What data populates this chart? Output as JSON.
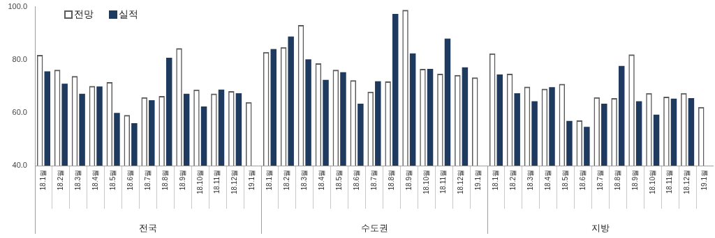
{
  "chart_data": [
    {
      "type": "bar",
      "xlabel": "전국",
      "legend": "top left",
      "categories": [
        "18.1월",
        "18.2월",
        "18.3월",
        "18.4월",
        "18.5월",
        "18.6월",
        "18.7월",
        "18.8월",
        "18.9월",
        "18.10월",
        "18.11월",
        "18.12월",
        "19.1월"
      ],
      "series": [
        {
          "name": "전망",
          "color": "#5a5a5a",
          "values": [
            81.8,
            76.2,
            73.8,
            70.1,
            71.5,
            59.1,
            65.8,
            66.3,
            84.3,
            68.7,
            67.2,
            68.1,
            64.0
          ]
        },
        {
          "name": "실적",
          "color": "#1f3a5f",
          "values": [
            75.6,
            70.9,
            67.1,
            69.9,
            59.9,
            56.0,
            64.7,
            80.7,
            67.1,
            62.3,
            68.7,
            67.3,
            null
          ]
        }
      ],
      "ylim": [
        40,
        100
      ],
      "yticks": [
        {
          "value": 40,
          "label": "40.0"
        },
        {
          "value": 60,
          "label": "60.0"
        },
        {
          "value": 80,
          "label": "80.0"
        },
        {
          "value": 100,
          "label": "100.0"
        }
      ]
    },
    {
      "type": "bar",
      "xlabel": "수도권",
      "tick_labels": "x",
      "categories": [
        "18.1월",
        "18.2월",
        "18.3월",
        "18.4월",
        "18.5월",
        "18.6월",
        "18.7월",
        "18.8월",
        "18.9월",
        "18.10월",
        "18.11월",
        "18.12월",
        "19.1월"
      ],
      "series": [
        {
          "color": "#5a5a5a",
          "values": [
            82.4,
            84.2,
            92.5,
            78.2,
            75.8,
            71.9,
            67.6,
            71.4,
            98.1,
            76.1,
            74.3,
            73.8,
            72.9
          ]
        },
        {
          "color": "#1f3a5f",
          "values": [
            83.5,
            88.2,
            79.7,
            72.0,
            74.9,
            63.1,
            71.5,
            96.6,
            81.9,
            76.1,
            87.4,
            76.7,
            null
          ]
        }
      ],
      "ylim": [
        40,
        100
      ]
    },
    {
      "type": "bar",
      "xlabel": "지방",
      "tick_labels": "x",
      "categories": [
        "18.1월",
        "18.2월",
        "18.3월",
        "18.4월",
        "18.5월",
        "18.6월",
        "18.7월",
        "18.8월",
        "18.9월",
        "18.10월",
        "18.11월",
        "18.12월",
        "19.1월"
      ],
      "series": [
        {
          "color": "#5a5a5a",
          "values": [
            81.9,
            74.3,
            69.5,
            68.7,
            70.5,
            56.9,
            65.5,
            65.2,
            81.5,
            67.1,
            65.7,
            67.1,
            61.9
          ]
        },
        {
          "color": "#1f3a5f",
          "values": [
            74.0,
            67.0,
            64.0,
            69.3,
            56.7,
            54.5,
            63.1,
            77.2,
            64.0,
            59.0,
            65.0,
            65.2,
            null
          ]
        }
      ],
      "ylim": [
        40,
        100
      ]
    }
  ]
}
